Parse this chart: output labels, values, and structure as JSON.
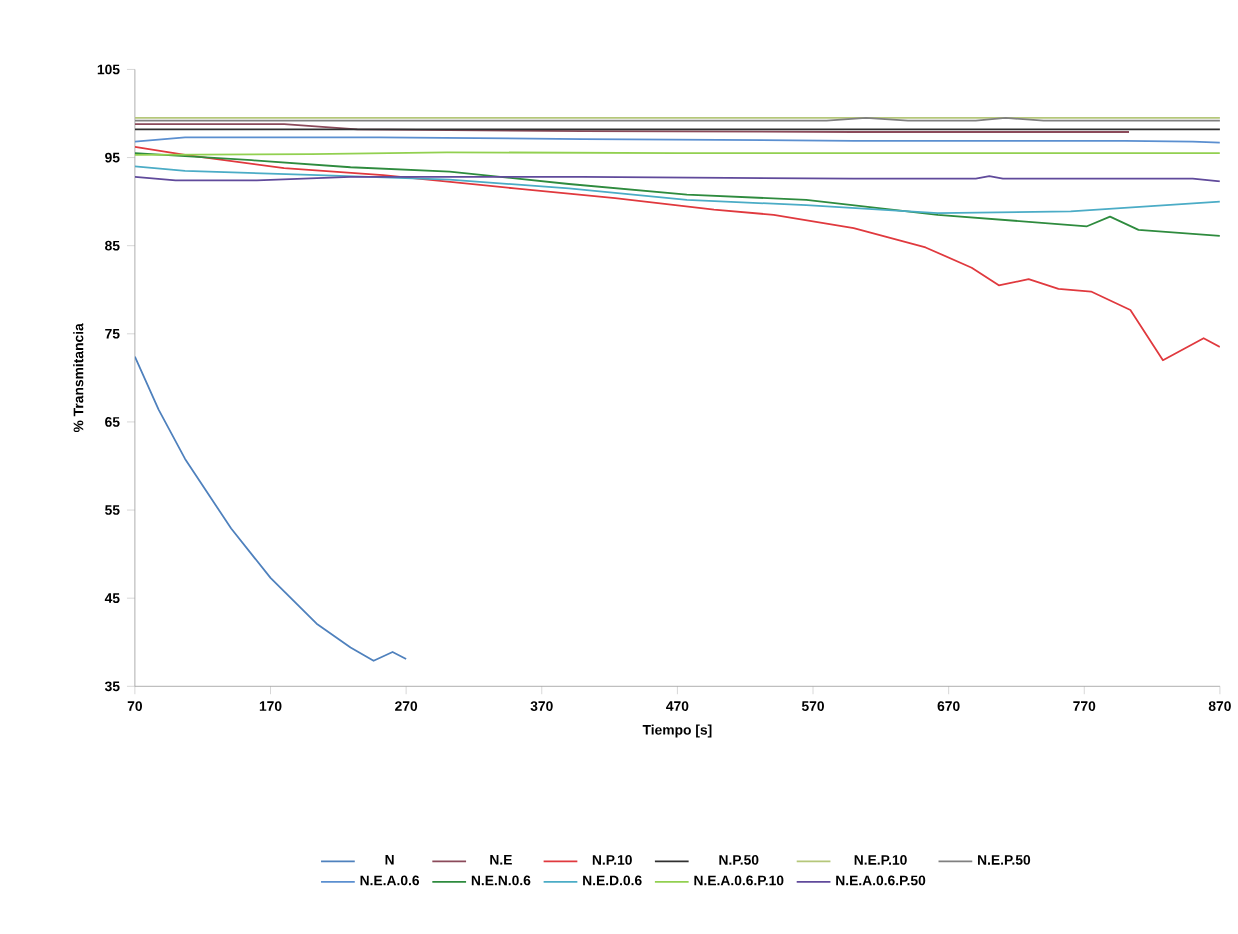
{
  "chart_data": {
    "type": "line",
    "xlabel": "Tiempo [s]",
    "ylabel": "% Transmitancia",
    "xlim": [
      70,
      870
    ],
    "ylim": [
      35,
      105
    ],
    "xticks": [
      70,
      170,
      270,
      370,
      470,
      570,
      670,
      770,
      870
    ],
    "yticks": [
      35,
      45,
      55,
      65,
      75,
      85,
      95,
      105
    ],
    "legend": "bottom",
    "marker": "none",
    "line_style": "solid",
    "series": [
      {
        "name": "N",
        "color": "#4f81bd",
        "x": [
          70,
          87.5,
          107,
          141,
          170,
          204,
          229,
          246,
          260,
          270
        ],
        "values": [
          72.4,
          66.4,
          60.8,
          52.9,
          47.3,
          42.1,
          39.4,
          37.9,
          38.9,
          38.1
        ]
      },
      {
        "name": "N.E",
        "color": "#8b4a5a",
        "x": [
          70,
          180,
          234,
          400,
          600,
          803
        ],
        "values": [
          98.8,
          98.8,
          98.2,
          98.0,
          97.9,
          97.9
        ]
      },
      {
        "name": "N.P.10",
        "color": "#e0393e",
        "x": [
          70,
          107,
          180,
          253,
          350,
          424,
          497,
          541,
          600,
          653,
          687,
          707,
          729,
          751,
          775,
          804,
          828,
          858,
          870
        ],
        "values": [
          96.2,
          95.3,
          93.8,
          93.0,
          91.5,
          90.4,
          89.1,
          88.5,
          87.0,
          84.8,
          82.5,
          80.5,
          81.2,
          80.1,
          79.8,
          77.7,
          72.0,
          74.5,
          73.5
        ]
      },
      {
        "name": "N.P.50",
        "color": "#303030",
        "x": [
          70,
          300,
          500,
          700,
          870
        ],
        "values": [
          98.2,
          98.2,
          98.2,
          98.2,
          98.2
        ]
      },
      {
        "name": "N.E.P.10",
        "color": "#b5c77a",
        "x": [
          70,
          300,
          500,
          700,
          870
        ],
        "values": [
          99.5,
          99.5,
          99.5,
          99.5,
          99.5
        ]
      },
      {
        "name": "N.E.P.50",
        "color": "#808080",
        "x": [
          70,
          300,
          580,
          609,
          640,
          690,
          712,
          740,
          870
        ],
        "values": [
          99.2,
          99.2,
          99.2,
          99.5,
          99.2,
          99.2,
          99.5,
          99.2,
          99.2
        ]
      },
      {
        "name": "N.E.A.0.6",
        "color": "#5b8fd0",
        "x": [
          70,
          107,
          250,
          400,
          600,
          800,
          850,
          870
        ],
        "values": [
          96.8,
          97.3,
          97.3,
          97.1,
          96.9,
          96.9,
          96.8,
          96.7
        ]
      },
      {
        "name": "N.E.N.0.6",
        "color": "#2e8b3e",
        "x": [
          70,
          156,
          229,
          302,
          390,
          477,
          565,
          662,
          772,
          789,
          810,
          870
        ],
        "values": [
          95.5,
          94.7,
          93.9,
          93.4,
          92.0,
          90.8,
          90.2,
          88.5,
          87.2,
          88.3,
          86.8,
          86.1
        ]
      },
      {
        "name": "N.E.D.0.6",
        "color": "#4bacc6",
        "x": [
          70,
          107,
          205,
          302,
          390,
          477,
          565,
          662,
          760,
          870
        ],
        "values": [
          94.0,
          93.5,
          93.0,
          92.5,
          91.5,
          90.2,
          89.6,
          88.7,
          88.9,
          90.0
        ]
      },
      {
        "name": "N.E.A.0.6.P.10",
        "color": "#92d050",
        "x": [
          70,
          200,
          300,
          470,
          870
        ],
        "values": [
          95.3,
          95.4,
          95.6,
          95.5,
          95.5
        ]
      },
      {
        "name": "N.E.A.0.6.P.50",
        "color": "#604a9b",
        "x": [
          70,
          100,
          160,
          229,
          400,
          600,
          690,
          700,
          710,
          850,
          870
        ],
        "values": [
          92.8,
          92.4,
          92.4,
          92.8,
          92.8,
          92.6,
          92.6,
          92.9,
          92.6,
          92.6,
          92.3
        ]
      }
    ]
  }
}
